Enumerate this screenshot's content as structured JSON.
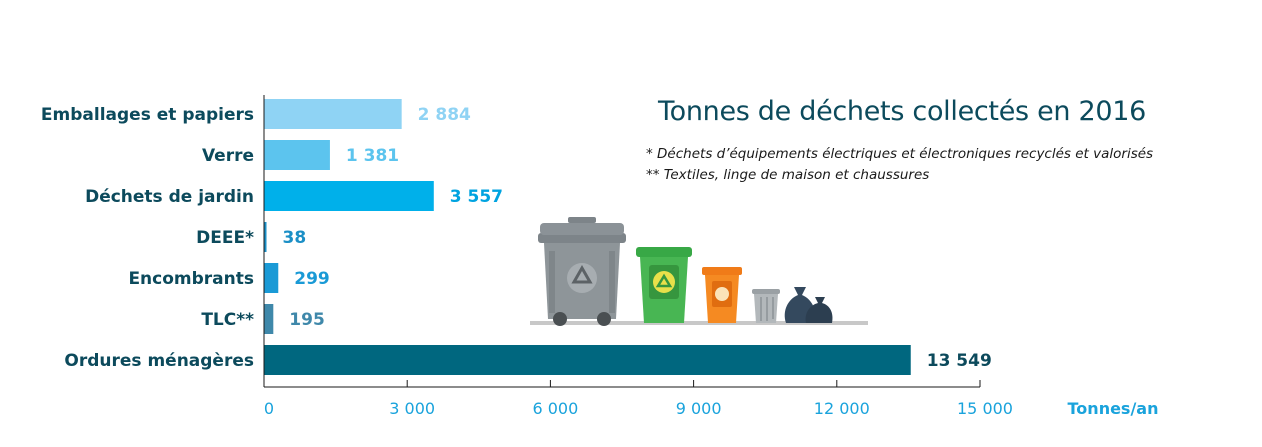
{
  "chart_data": {
    "type": "bar",
    "orientation": "horizontal",
    "title": "Tonnes de déchets collectés en 2016",
    "notes": [
      "* Déchets d’équipements électriques et électroniques recyclés et valorisés",
      "** Textiles, linge de maison et chaussures"
    ],
    "categories": [
      "Emballages et papiers",
      "Verre",
      "Déchets de jardin",
      "DEEE*",
      "Encombrants",
      "TLC**",
      "Ordures ménagères"
    ],
    "values": [
      2884,
      1381,
      3557,
      38,
      299,
      195,
      13549
    ],
    "value_labels": [
      "2 884",
      "1 381",
      "3 557",
      "38",
      "299",
      "195",
      "13 549"
    ],
    "colors": [
      "#8fd3f4",
      "#5cc4ee",
      "#00b0ea",
      "#1b8fc6",
      "#1a9ad6",
      "#3f88aa",
      "#00677f"
    ],
    "label_colors": [
      "#8fd3f4",
      "#5cc4ee",
      "#00a3e0",
      "#1b8fc6",
      "#1a9ad6",
      "#3f88aa",
      "#0c4a5c"
    ],
    "category_label_color": "#0c4a5c",
    "xlim": [
      0,
      15000
    ],
    "x_ticks": [
      0,
      3000,
      6000,
      9000,
      12000,
      15000
    ],
    "x_tick_labels": [
      "0",
      "3 000",
      "6 000",
      "9 000",
      "12 000",
      "15 000"
    ],
    "xlabel": "Tonnes/an",
    "axis_color": "#1aa3dc",
    "grid": false
  },
  "illustration": {
    "bin_icons": [
      "grey-wheelie-bin-recycle-icon",
      "green-wheelie-bin-recycle-icon",
      "orange-wheelie-bin-recycle-icon",
      "grey-trash-can-icon",
      "garbage-bags-icon"
    ]
  }
}
